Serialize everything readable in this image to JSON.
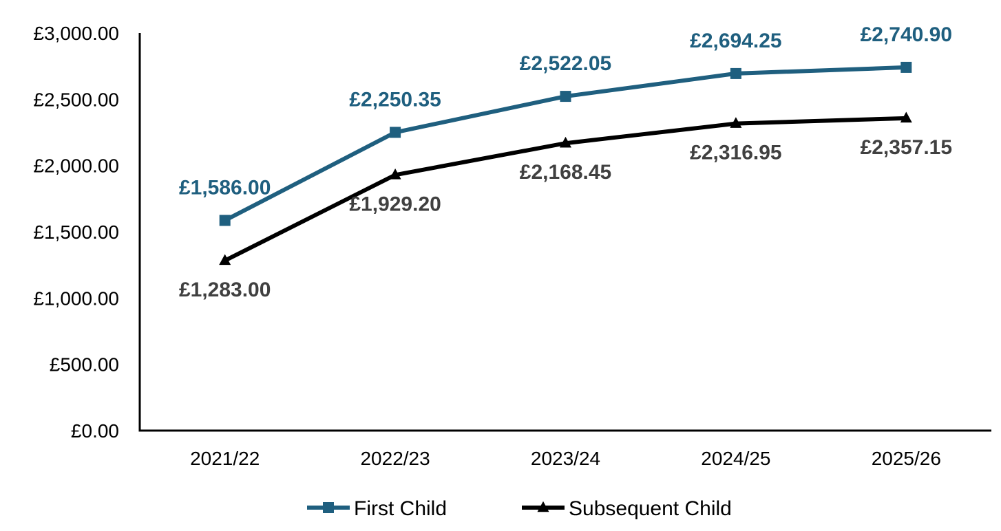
{
  "chart_data": {
    "type": "line",
    "title": "",
    "xlabel": "",
    "ylabel": "",
    "categories": [
      "2021/22",
      "2022/23",
      "2023/24",
      "2024/25",
      "2025/26"
    ],
    "ylim": [
      0,
      3000
    ],
    "yticks": [
      0,
      500,
      1000,
      1500,
      2000,
      2500,
      3000
    ],
    "ytick_labels": [
      "£0.00",
      "£500.00",
      "£1,000.00",
      "£1,500.00",
      "£2,000.00",
      "£2,500.00",
      "£3,000.00"
    ],
    "grid": false,
    "legend_position": "bottom",
    "series": [
      {
        "name": "First Child",
        "color": "#1F5F7F",
        "marker": "square",
        "label_position": "above",
        "values": [
          1586.0,
          2250.35,
          2522.05,
          2694.25,
          2740.9
        ],
        "labels": [
          "£1,586.00",
          "£2,250.35",
          "£2,522.05",
          "£2,694.25",
          "£2,740.90"
        ]
      },
      {
        "name": "Subsequent Child",
        "color": "#000000",
        "label_color": "#404040",
        "marker": "triangle",
        "label_position": "below",
        "values": [
          1283.0,
          1929.2,
          2168.45,
          2316.95,
          2357.15
        ],
        "labels": [
          "£1,283.00",
          "£1,929.20",
          "£2,168.45",
          "£2,316.95",
          "£2,357.15"
        ]
      }
    ]
  }
}
